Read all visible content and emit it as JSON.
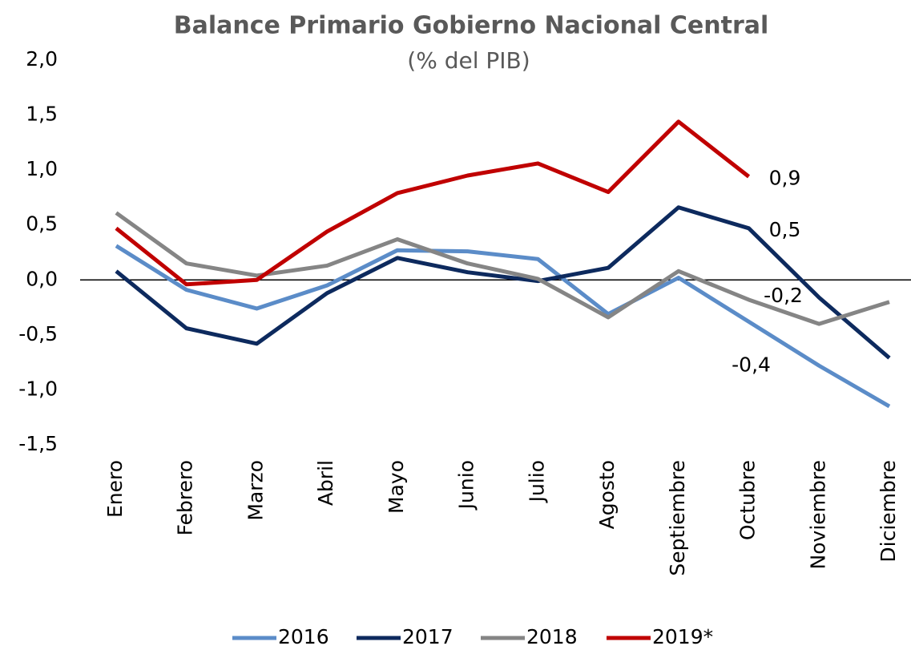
{
  "chart_data": {
    "type": "line",
    "title": "Balance Primario Gobierno Nacional Central",
    "subtitle": "(% del PIB)",
    "categories": [
      "Enero",
      "Febrero",
      "Marzo",
      "Abril",
      "Mayo",
      "Junio",
      "Julio",
      "Agosto",
      "Septiembre",
      "Octubre",
      "Noviembre",
      "Diciembre"
    ],
    "series": [
      {
        "name": "2016",
        "color": "#5b8cc8",
        "values": [
          0.31,
          -0.09,
          -0.26,
          -0.05,
          0.27,
          0.26,
          0.19,
          -0.31,
          0.02,
          -0.38,
          -0.78,
          -1.15
        ],
        "value_labels": [
          null,
          null,
          null,
          null,
          null,
          null,
          null,
          null,
          null,
          "-0,4",
          null,
          null
        ]
      },
      {
        "name": "2017",
        "color": "#0d2a5e",
        "values": [
          0.08,
          -0.44,
          -0.58,
          -0.12,
          0.2,
          0.07,
          -0.01,
          0.11,
          0.66,
          0.47,
          -0.16,
          -0.71
        ],
        "value_labels": [
          null,
          null,
          null,
          null,
          null,
          null,
          null,
          null,
          null,
          "0,5",
          null,
          null
        ]
      },
      {
        "name": "2018",
        "color": "#858585",
        "values": [
          0.61,
          0.15,
          0.04,
          0.13,
          0.37,
          0.15,
          0.01,
          -0.34,
          0.08,
          -0.18,
          -0.4,
          -0.2
        ],
        "value_labels": [
          null,
          null,
          null,
          null,
          null,
          null,
          null,
          null,
          null,
          "-0,2",
          null,
          null
        ]
      },
      {
        "name": "2019*",
        "color": "#c00000",
        "values": [
          0.47,
          -0.04,
          0.0,
          0.44,
          0.79,
          0.95,
          1.06,
          0.8,
          1.44,
          0.94,
          null,
          null
        ],
        "value_labels": [
          null,
          null,
          null,
          null,
          null,
          null,
          null,
          null,
          null,
          "0,9",
          null,
          null
        ]
      }
    ],
    "ylim": [
      -1.5,
      2.0
    ],
    "yticks": [
      {
        "value": -1.5,
        "label": "-1,5"
      },
      {
        "value": -1.0,
        "label": "-1,0"
      },
      {
        "value": -0.5,
        "label": "-0,5"
      },
      {
        "value": 0.0,
        "label": "0,0"
      },
      {
        "value": 0.5,
        "label": "0,5"
      },
      {
        "value": 1.0,
        "label": "1,0"
      },
      {
        "value": 1.5,
        "label": "1,5"
      },
      {
        "value": 2.0,
        "label": "2,0"
      }
    ],
    "grid": false,
    "legend": "bottom"
  }
}
